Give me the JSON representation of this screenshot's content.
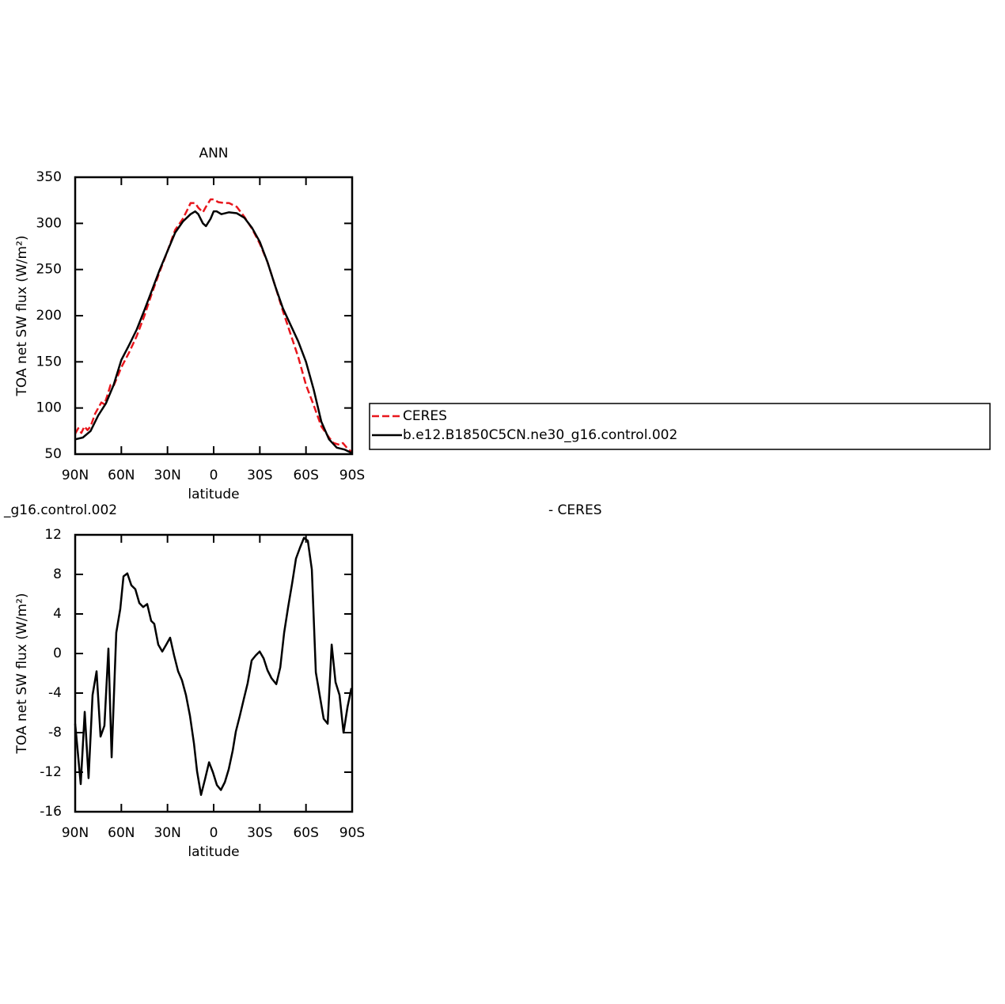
{
  "chart_data": [
    {
      "type": "line",
      "title": "ANN",
      "xlabel": "latitude",
      "ylabel": "TOA net SW flux (W/m²)",
      "xlim": [
        90,
        -90
      ],
      "ylim": [
        50,
        350
      ],
      "xticks": [
        {
          "value": 90,
          "label": "90N"
        },
        {
          "value": 60,
          "label": "60N"
        },
        {
          "value": 30,
          "label": "30N"
        },
        0,
        {
          "value": -30,
          "label": "30S"
        },
        {
          "value": -60,
          "label": "60S"
        },
        {
          "value": -90,
          "label": "90S"
        }
      ],
      "yticks": [
        50,
        100,
        150,
        200,
        250,
        300,
        350
      ],
      "legend": "right",
      "series": [
        {
          "name": "CERES",
          "color": "#e8161c",
          "dash": true,
          "x": [
            90,
            88,
            86,
            84,
            82,
            80,
            77,
            75,
            73,
            71,
            69,
            67,
            65,
            60,
            55,
            50,
            45,
            40,
            35,
            30,
            25,
            20,
            17,
            15,
            12,
            10,
            7,
            5,
            2,
            0,
            -3,
            -7,
            -10,
            -15,
            -20,
            -25,
            -30,
            -35,
            -40,
            -45,
            -50,
            -55,
            -60,
            -65,
            -70,
            -75,
            -78,
            -82,
            -84,
            -87,
            -90
          ],
          "values": [
            72,
            78,
            73,
            80,
            76,
            80,
            94,
            100,
            106,
            104,
            114,
            125,
            124,
            144,
            160,
            178,
            200,
            225,
            248,
            270,
            293,
            305,
            315,
            322,
            322,
            317,
            312,
            318,
            326,
            326,
            323,
            322,
            322,
            318,
            307,
            294,
            278,
            258,
            232,
            205,
            180,
            155,
            125,
            103,
            80,
            68,
            62,
            60,
            62,
            56,
            52
          ]
        },
        {
          "name": "b.e12.B1850C5CN.ne30_g16.control.002",
          "color": "#000000",
          "dash": false,
          "x": [
            90,
            85,
            80,
            75,
            70,
            65,
            60,
            55,
            50,
            45,
            40,
            35,
            30,
            25,
            20,
            15,
            12,
            10,
            7,
            5,
            2,
            0,
            -2,
            -5,
            -10,
            -15,
            -20,
            -25,
            -30,
            -35,
            -40,
            -45,
            -50,
            -55,
            -60,
            -65,
            -70,
            -75,
            -80,
            -85,
            -90
          ],
          "values": [
            66,
            68,
            75,
            92,
            105,
            125,
            152,
            168,
            185,
            206,
            228,
            250,
            270,
            290,
            302,
            310,
            313,
            310,
            300,
            297,
            305,
            313,
            313,
            310,
            312,
            311,
            306,
            295,
            280,
            258,
            232,
            208,
            190,
            172,
            150,
            120,
            85,
            66,
            57,
            55,
            51
          ]
        }
      ]
    },
    {
      "type": "line",
      "title_left": "_g16.control.002",
      "title_right": "- CERES",
      "xlabel": "latitude",
      "ylabel": "TOA net SW flux (W/m²)",
      "xlim": [
        90,
        -90
      ],
      "ylim": [
        -16,
        12
      ],
      "xticks": [
        {
          "value": 90,
          "label": "90N"
        },
        {
          "value": 60,
          "label": "60N"
        },
        {
          "value": 30,
          "label": "30N"
        },
        0,
        {
          "value": -30,
          "label": "30S"
        },
        {
          "value": -60,
          "label": "60S"
        },
        {
          "value": -90,
          "label": "90S"
        }
      ],
      "yticks": [
        -16,
        -12,
        -8,
        -4,
        0,
        4,
        8,
        12
      ],
      "color": "#000000",
      "x": [
        90,
        86.4,
        83.8,
        81.3,
        78.7,
        76.1,
        73.5,
        71.0,
        68.4,
        66.3,
        63.3,
        60.7,
        58.6,
        56.1,
        53.5,
        50.9,
        48.3,
        45.8,
        43.2,
        40.6,
        38.6,
        36.0,
        33.4,
        30.8,
        28.3,
        25.7,
        23.1,
        20.6,
        18.0,
        15.4,
        12.8,
        10.8,
        8.2,
        5.6,
        3.0,
        0.5,
        -2.1,
        -4.7,
        -7.3,
        -9.8,
        -12.4,
        -14.4,
        -17.0,
        -19.6,
        -22.1,
        -24.7,
        -27.3,
        -29.9,
        -32.5,
        -35.0,
        -37.6,
        -40.7,
        -43.3,
        -45.8,
        -48.4,
        -51.0,
        -53.5,
        -56.1,
        -58.7,
        -61.2,
        -63.8,
        -66.4,
        -69.0,
        -71.5,
        -74.1,
        -76.7,
        -79.2,
        -81.8,
        -84.4,
        -87.0,
        -89.5
      ],
      "values": [
        -7.1,
        -13.2,
        -5.9,
        -12.6,
        -4.2,
        -1.8,
        -8.4,
        -7.3,
        0.5,
        -10.5,
        2.1,
        4.5,
        7.8,
        8.1,
        6.9,
        6.5,
        5.1,
        4.7,
        5.0,
        3.3,
        3.0,
        0.9,
        0.2,
        0.9,
        1.6,
        -0.2,
        -1.8,
        -2.7,
        -4.2,
        -6.3,
        -9.1,
        -11.9,
        -14.3,
        -12.7,
        -11.0,
        -12.0,
        -13.3,
        -13.8,
        -13.0,
        -11.7,
        -9.8,
        -7.9,
        -6.3,
        -4.6,
        -3.0,
        -0.7,
        -0.2,
        0.2,
        -0.5,
        -1.7,
        -2.5,
        -3.1,
        -1.4,
        2.1,
        4.7,
        7.1,
        9.6,
        10.7,
        11.7,
        11.4,
        8.5,
        -1.9,
        -4.3,
        -6.6,
        -7.1,
        0.9,
        -2.9,
        -4.2,
        -8.0,
        -5.4,
        -3.5
      ]
    }
  ]
}
